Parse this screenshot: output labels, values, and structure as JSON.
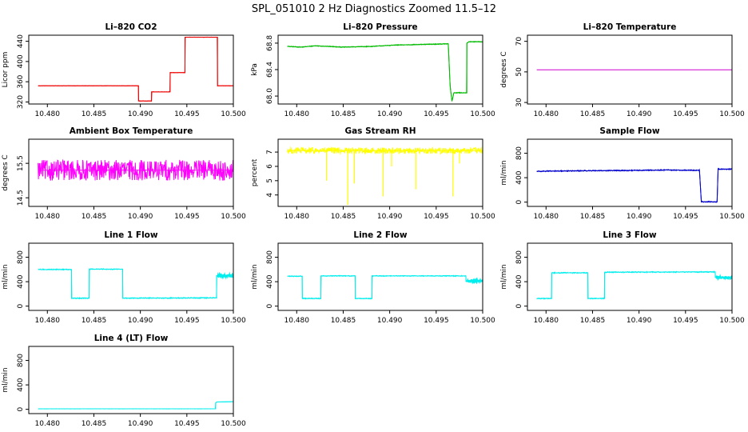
{
  "figure_title": "SPL_051010  2 Hz Diagnostics Zoomed 11.5–12",
  "chart_data": [
    {
      "type": "line",
      "title": "Li–820 CO2",
      "ylabel": "Licor ppm",
      "color": "#ee0000",
      "xlim": [
        10.478,
        10.5
      ],
      "ylim": [
        316,
        452
      ],
      "yticks": [
        320,
        360,
        400,
        440
      ],
      "xticks": [
        "10.480",
        "10.485",
        "10.490",
        "10.495",
        "10.500"
      ],
      "noise": 0.3,
      "series": [
        [
          10.479,
          352
        ],
        [
          10.4898,
          352
        ],
        [
          10.4898,
          322
        ],
        [
          10.4912,
          322
        ],
        [
          10.4912,
          340
        ],
        [
          10.4932,
          340
        ],
        [
          10.4932,
          378
        ],
        [
          10.4948,
          378
        ],
        [
          10.4948,
          448
        ],
        [
          10.4983,
          448
        ],
        [
          10.4983,
          352
        ],
        [
          10.5,
          352
        ]
      ]
    },
    {
      "type": "line",
      "title": "Li–820 Pressure",
      "ylabel": "kPa",
      "color": "#00bb00",
      "xlim": [
        10.478,
        10.5
      ],
      "ylim": [
        67.88,
        68.92
      ],
      "yticks": [
        "68.0",
        "68.4",
        "68.8"
      ],
      "xticks": [
        "10.480",
        "10.485",
        "10.490",
        "10.495",
        "10.500"
      ],
      "noise": 0.006,
      "series": [
        [
          10.479,
          68.75
        ],
        [
          10.4805,
          68.74
        ],
        [
          10.482,
          68.76
        ],
        [
          10.485,
          68.74
        ],
        [
          10.488,
          68.75
        ],
        [
          10.4905,
          68.77
        ],
        [
          10.4935,
          68.78
        ],
        [
          10.4963,
          68.79
        ],
        [
          10.4965,
          68.15
        ],
        [
          10.4967,
          67.92
        ],
        [
          10.4969,
          68.05
        ],
        [
          10.4983,
          68.05
        ],
        [
          10.4983,
          68.8
        ],
        [
          10.4985,
          68.82
        ],
        [
          10.5,
          68.82
        ]
      ]
    },
    {
      "type": "line",
      "title": "Li–820 Temperature",
      "ylabel": "degrees C",
      "color": "#cc00cc",
      "xlim": [
        10.478,
        10.5
      ],
      "ylim": [
        29,
        74
      ],
      "yticks": [
        30,
        50,
        70
      ],
      "xticks": [
        "10.480",
        "10.485",
        "10.490",
        "10.495",
        "10.500"
      ],
      "noise": 0,
      "series": [
        [
          10.479,
          51.4
        ],
        [
          10.5,
          51.4
        ]
      ]
    },
    {
      "type": "line",
      "title": "Ambient Box Temperature",
      "ylabel": "degrees C",
      "color": "#ff00ff",
      "xlim": [
        10.478,
        10.5
      ],
      "ylim": [
        14.25,
        16.2
      ],
      "yticks": [
        "14.5",
        "15.5"
      ],
      "xticks": [
        "10.480",
        "10.485",
        "10.490",
        "10.495",
        "10.500"
      ],
      "noise": 0.3,
      "series": [
        [
          10.479,
          15.3
        ],
        [
          10.5,
          15.3
        ]
      ]
    },
    {
      "type": "line",
      "title": "Gas Stream RH",
      "ylabel": "percent",
      "color": "#ffff00",
      "xlim": [
        10.478,
        10.5
      ],
      "ylim": [
        3.2,
        7.9
      ],
      "yticks": [
        4,
        5,
        6,
        7
      ],
      "xticks": [
        "10.480",
        "10.485",
        "10.490",
        "10.495",
        "10.500"
      ],
      "noise": 0.22,
      "spikes": [
        [
          10.4832,
          5.0
        ],
        [
          10.4855,
          3.3
        ],
        [
          10.4862,
          4.8
        ],
        [
          10.4893,
          3.9
        ],
        [
          10.4902,
          6.0
        ],
        [
          10.4928,
          4.4
        ],
        [
          10.4968,
          3.9
        ],
        [
          10.4975,
          6.2
        ]
      ],
      "series": [
        [
          10.479,
          7.1
        ],
        [
          10.5,
          7.1
        ]
      ]
    },
    {
      "type": "line",
      "title": "Sample Flow",
      "ylabel": "ml/min",
      "color": "#0000cc",
      "xlim": [
        10.478,
        10.5
      ],
      "ylim": [
        -70,
        1030
      ],
      "yticks": [
        0,
        400,
        800
      ],
      "xticks": [
        "10.480",
        "10.485",
        "10.490",
        "10.495",
        "10.500"
      ],
      "noise": 9,
      "series": [
        [
          10.479,
          505
        ],
        [
          10.482,
          510
        ],
        [
          10.485,
          515
        ],
        [
          10.489,
          518
        ],
        [
          10.493,
          525
        ],
        [
          10.4965,
          520
        ],
        [
          10.4967,
          5
        ],
        [
          10.4984,
          5
        ],
        [
          10.4985,
          540
        ],
        [
          10.5,
          540
        ]
      ]
    },
    {
      "type": "line",
      "title": "Line 1 Flow",
      "ylabel": "ml/min",
      "color": "#00eeee",
      "xlim": [
        10.478,
        10.5
      ],
      "ylim": [
        -70,
        1030
      ],
      "yticks": [
        0,
        400,
        800
      ],
      "xticks": [
        "10.480",
        "10.485",
        "10.490",
        "10.495",
        "10.500"
      ],
      "noise": 8,
      "thickEnd": [
        10.4983,
        10.5,
        500,
        40
      ],
      "series": [
        [
          10.479,
          600
        ],
        [
          10.4826,
          600
        ],
        [
          10.4826,
          130
        ],
        [
          10.4845,
          130
        ],
        [
          10.4845,
          605
        ],
        [
          10.4881,
          605
        ],
        [
          10.4881,
          130
        ],
        [
          10.4982,
          135
        ],
        [
          10.4982,
          500
        ],
        [
          10.5,
          500
        ]
      ]
    },
    {
      "type": "line",
      "title": "Line 2 Flow",
      "ylabel": "ml/min",
      "color": "#00eeee",
      "xlim": [
        10.478,
        10.5
      ],
      "ylim": [
        -70,
        1030
      ],
      "yticks": [
        0,
        400,
        800
      ],
      "xticks": [
        "10.480",
        "10.485",
        "10.490",
        "10.495",
        "10.500"
      ],
      "noise": 7,
      "thickEnd": [
        10.4983,
        10.5,
        410,
        28
      ],
      "series": [
        [
          10.479,
          490
        ],
        [
          10.4806,
          490
        ],
        [
          10.4806,
          125
        ],
        [
          10.4826,
          125
        ],
        [
          10.4826,
          495
        ],
        [
          10.4863,
          495
        ],
        [
          10.4863,
          125
        ],
        [
          10.4881,
          125
        ],
        [
          10.4881,
          495
        ],
        [
          10.4982,
          495
        ],
        [
          10.4982,
          410
        ],
        [
          10.5,
          410
        ]
      ]
    },
    {
      "type": "line",
      "title": "Line 3 Flow",
      "ylabel": "ml/min",
      "color": "#00eeee",
      "xlim": [
        10.478,
        10.5
      ],
      "ylim": [
        -70,
        1030
      ],
      "yticks": [
        0,
        400,
        800
      ],
      "xticks": [
        "10.480",
        "10.485",
        "10.490",
        "10.495",
        "10.500"
      ],
      "noise": 8,
      "thickEnd": [
        10.4983,
        10.5,
        470,
        40
      ],
      "series": [
        [
          10.479,
          125
        ],
        [
          10.4806,
          125
        ],
        [
          10.4806,
          545
        ],
        [
          10.4845,
          545
        ],
        [
          10.4845,
          125
        ],
        [
          10.4863,
          125
        ],
        [
          10.4863,
          555
        ],
        [
          10.4982,
          560
        ],
        [
          10.4982,
          470
        ],
        [
          10.5,
          470
        ]
      ]
    },
    {
      "type": "line",
      "title": "Line 4 (LT) Flow",
      "ylabel": "ml/min",
      "color": "#00eeee",
      "xlim": [
        10.478,
        10.5
      ],
      "ylim": [
        -70,
        1030
      ],
      "yticks": [
        0,
        400,
        800
      ],
      "xticks": [
        "10.480",
        "10.485",
        "10.490",
        "10.495",
        "10.500"
      ],
      "noise": 1.5,
      "series": [
        [
          10.479,
          8
        ],
        [
          10.4981,
          8
        ],
        [
          10.4981,
          105
        ],
        [
          10.4982,
          120
        ],
        [
          10.5,
          125
        ]
      ]
    }
  ]
}
